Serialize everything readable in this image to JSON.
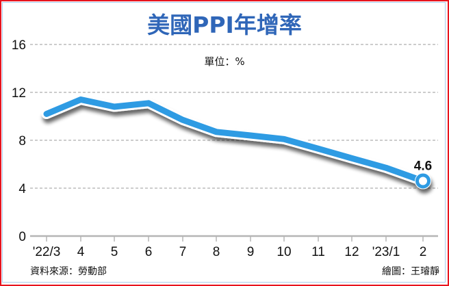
{
  "title": "美國PPI年增率",
  "unit": "單位：%",
  "source": "資料來源：勞動部",
  "credit": "繪圖：王璿靜",
  "colors": {
    "title": "#2f66b8",
    "line": "#2e9be3",
    "border": "#e8141e",
    "inner_border": "#a9cdee",
    "grid": "#9a9a9a"
  },
  "chart_data": {
    "type": "line",
    "title": "美國PPI年增率",
    "subtitle": "單位：%",
    "xlabel": "",
    "ylabel": "",
    "categories": [
      "'22/3",
      "4",
      "5",
      "6",
      "7",
      "8",
      "9",
      "10",
      "11",
      "12",
      "'23/1",
      "2"
    ],
    "series": [
      {
        "name": "PPI年增率",
        "values": [
          10.2,
          11.4,
          10.8,
          11.1,
          9.7,
          8.7,
          8.4,
          8.1,
          7.3,
          6.5,
          5.7,
          4.6
        ]
      }
    ],
    "ylim": [
      0,
      16
    ],
    "yticks": [
      0,
      4,
      8,
      12,
      16
    ],
    "grid": true,
    "annotations": [
      {
        "category": "2",
        "value": 4.6,
        "label": "4.6"
      }
    ],
    "legend": "none",
    "source": "資料來源：勞動部",
    "credit": "繪圖：王璿靜"
  }
}
